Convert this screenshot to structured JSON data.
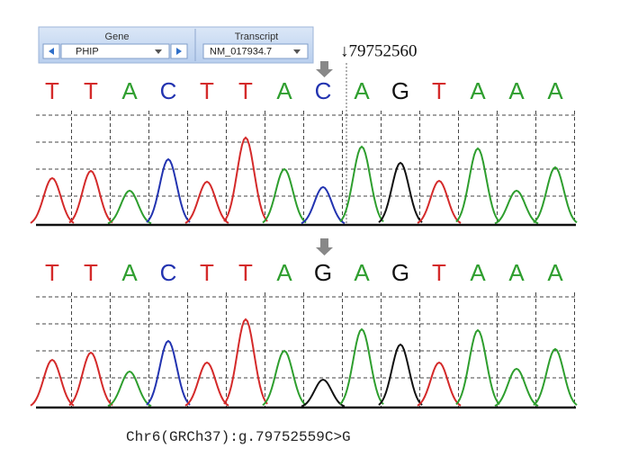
{
  "toolbar": {
    "gene_label": "Gene",
    "gene": "PHIP",
    "transcript_label": "Transcript",
    "transcript": "NM_017934.7"
  },
  "position": "↓79752560",
  "tracks": [
    {
      "bases": [
        "T",
        "T",
        "A",
        "C",
        "T",
        "T",
        "A",
        "C",
        "A",
        "G",
        "T",
        "A",
        "A",
        "A"
      ],
      "peak_heights": [
        52,
        60,
        38,
        73,
        48,
        97,
        62,
        42,
        87,
        69,
        49,
        85,
        38,
        64
      ]
    },
    {
      "bases": [
        "T",
        "T",
        "A",
        "C",
        "T",
        "T",
        "A",
        "G",
        "A",
        "G",
        "T",
        "A",
        "A",
        "A"
      ],
      "peak_heights": [
        53,
        61,
        40,
        74,
        50,
        98,
        63,
        31,
        87,
        70,
        50,
        86,
        43,
        65
      ]
    }
  ],
  "caption": "Chr6(GRCh37):g.79752559C>G"
}
